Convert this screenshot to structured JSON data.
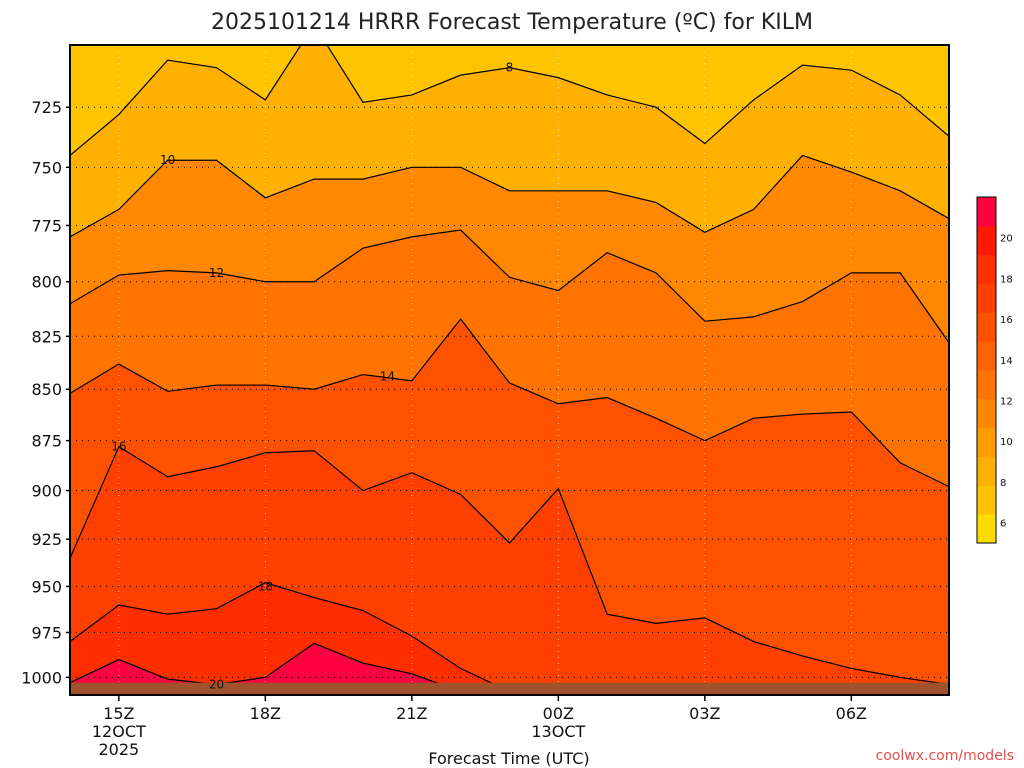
{
  "title": "2025101214 HRRR Forecast Temperature (ºC) for KILM",
  "credit": "coolwx.com/models",
  "chart_data": {
    "type": "heatmap",
    "title": "2025101214 HRRR Forecast Temperature (ºC) for KILM",
    "xlabel": "Forecast Time (UTC)",
    "ylabel": "",
    "x_ticks": [
      {
        "label": "15Z",
        "sub1": "12OCT",
        "sub2": "2025",
        "hour": 1
      },
      {
        "label": "18Z",
        "sub1": "",
        "sub2": "",
        "hour": 4
      },
      {
        "label": "21Z",
        "sub1": "",
        "sub2": "",
        "hour": 7
      },
      {
        "label": "00Z",
        "sub1": "13OCT",
        "sub2": "",
        "hour": 10
      },
      {
        "label": "03Z",
        "sub1": "",
        "sub2": "",
        "hour": 13
      },
      {
        "label": "06Z",
        "sub1": "",
        "sub2": "",
        "hour": 16
      }
    ],
    "x_range_hours": [
      0,
      18
    ],
    "y_ticks": [
      "725",
      "750",
      "775",
      "800",
      "825",
      "850",
      "875",
      "900",
      "925",
      "950",
      "975",
      "1000"
    ],
    "y_range_hpa": [
      700,
      1010
    ],
    "y_scale": "log",
    "grid": true,
    "hours": [
      0,
      1,
      2,
      3,
      4,
      5,
      6,
      7,
      8,
      9,
      10,
      11,
      12,
      13,
      14,
      15,
      16,
      17,
      18
    ],
    "contours": [
      {
        "value": 8,
        "label_at": [
          9,
          709
        ],
        "points": [
          [
            0,
            745
          ],
          [
            1,
            728
          ],
          [
            2,
            706
          ],
          [
            3,
            709
          ],
          [
            4,
            722
          ],
          [
            5,
            692
          ],
          [
            6,
            723
          ],
          [
            7,
            720
          ],
          [
            8,
            712
          ],
          [
            9,
            709
          ],
          [
            10,
            713
          ],
          [
            11,
            720
          ],
          [
            12,
            725
          ],
          [
            13,
            740
          ],
          [
            14,
            722
          ],
          [
            15,
            708
          ],
          [
            16,
            710
          ],
          [
            17,
            720
          ],
          [
            18,
            737
          ]
        ]
      },
      {
        "value": 10,
        "label_at": [
          2,
          747
        ],
        "points": [
          [
            0,
            780
          ],
          [
            1,
            768
          ],
          [
            2,
            747
          ],
          [
            3,
            747
          ],
          [
            4,
            763
          ],
          [
            5,
            755
          ],
          [
            6,
            755
          ],
          [
            7,
            750
          ],
          [
            8,
            750
          ],
          [
            9,
            760
          ],
          [
            10,
            760
          ],
          [
            11,
            760
          ],
          [
            12,
            765
          ],
          [
            13,
            778
          ],
          [
            14,
            768
          ],
          [
            15,
            745
          ],
          [
            16,
            752
          ],
          [
            17,
            760
          ],
          [
            18,
            772
          ]
        ]
      },
      {
        "value": 12,
        "label_at": [
          3,
          796
        ],
        "points": [
          [
            0,
            810
          ],
          [
            1,
            797
          ],
          [
            2,
            795
          ],
          [
            3,
            796
          ],
          [
            4,
            800
          ],
          [
            5,
            800
          ],
          [
            6,
            785
          ],
          [
            7,
            780
          ],
          [
            8,
            777
          ],
          [
            9,
            798
          ],
          [
            10,
            804
          ],
          [
            11,
            787
          ],
          [
            12,
            796
          ],
          [
            13,
            818
          ],
          [
            14,
            816
          ],
          [
            15,
            809
          ],
          [
            16,
            796
          ],
          [
            17,
            796
          ],
          [
            18,
            828
          ]
        ]
      },
      {
        "value": 14,
        "label_at": [
          6.5,
          844
        ],
        "points": [
          [
            0,
            852
          ],
          [
            1,
            838
          ],
          [
            2,
            851
          ],
          [
            3,
            848
          ],
          [
            4,
            848
          ],
          [
            5,
            850
          ],
          [
            6,
            843
          ],
          [
            7,
            846
          ],
          [
            8,
            817
          ],
          [
            9,
            847
          ],
          [
            10,
            857
          ],
          [
            11,
            854
          ],
          [
            12,
            864
          ],
          [
            13,
            875
          ],
          [
            14,
            864
          ],
          [
            15,
            862
          ],
          [
            16,
            861
          ],
          [
            17,
            886
          ],
          [
            18,
            898
          ]
        ]
      },
      {
        "value": 16,
        "label_at": [
          1,
          878
        ],
        "points": [
          [
            0,
            935
          ],
          [
            1,
            878
          ],
          [
            2,
            893
          ],
          [
            3,
            888
          ],
          [
            4,
            881
          ],
          [
            5,
            880
          ],
          [
            6,
            900
          ],
          [
            7,
            891
          ],
          [
            8,
            902
          ],
          [
            9,
            927
          ],
          [
            10,
            899
          ],
          [
            11,
            965
          ],
          [
            12,
            970
          ],
          [
            13,
            967
          ],
          [
            14,
            980
          ],
          [
            15,
            988
          ],
          [
            16,
            995
          ],
          [
            17,
            1000
          ],
          [
            18,
            1004
          ]
        ]
      },
      {
        "value": 18,
        "label_at": [
          4,
          950
        ],
        "points": [
          [
            0,
            980
          ],
          [
            1,
            960
          ],
          [
            2,
            965
          ],
          [
            3,
            962
          ],
          [
            4,
            948
          ],
          [
            5,
            956
          ],
          [
            6,
            963
          ],
          [
            7,
            977
          ],
          [
            8,
            995
          ],
          [
            9,
            1008
          ],
          [
            10,
            1010
          ]
        ]
      },
      {
        "value": 20,
        "label_at": [
          3,
          1004
        ],
        "points": [
          [
            0,
            1003
          ],
          [
            1,
            990
          ],
          [
            2,
            1001
          ],
          [
            3,
            1004
          ],
          [
            4,
            1000
          ],
          [
            5,
            981
          ],
          [
            6,
            992
          ],
          [
            7,
            998
          ],
          [
            8,
            1008
          ],
          [
            9,
            1010
          ]
        ]
      }
    ],
    "colorbar": {
      "ticks": [
        6,
        8,
        10,
        12,
        14,
        16,
        18,
        20
      ],
      "levels": [
        5,
        22
      ],
      "colors": [
        "#ffdc00",
        "#ffc400",
        "#ffb000",
        "#ff9c00",
        "#ff8800",
        "#ff7400",
        "#ff6300",
        "#ff5200",
        "#ff4000",
        "#ff2e00",
        "#ff1a00",
        "#ff0040"
      ]
    },
    "ground_color": "#a0522d"
  }
}
